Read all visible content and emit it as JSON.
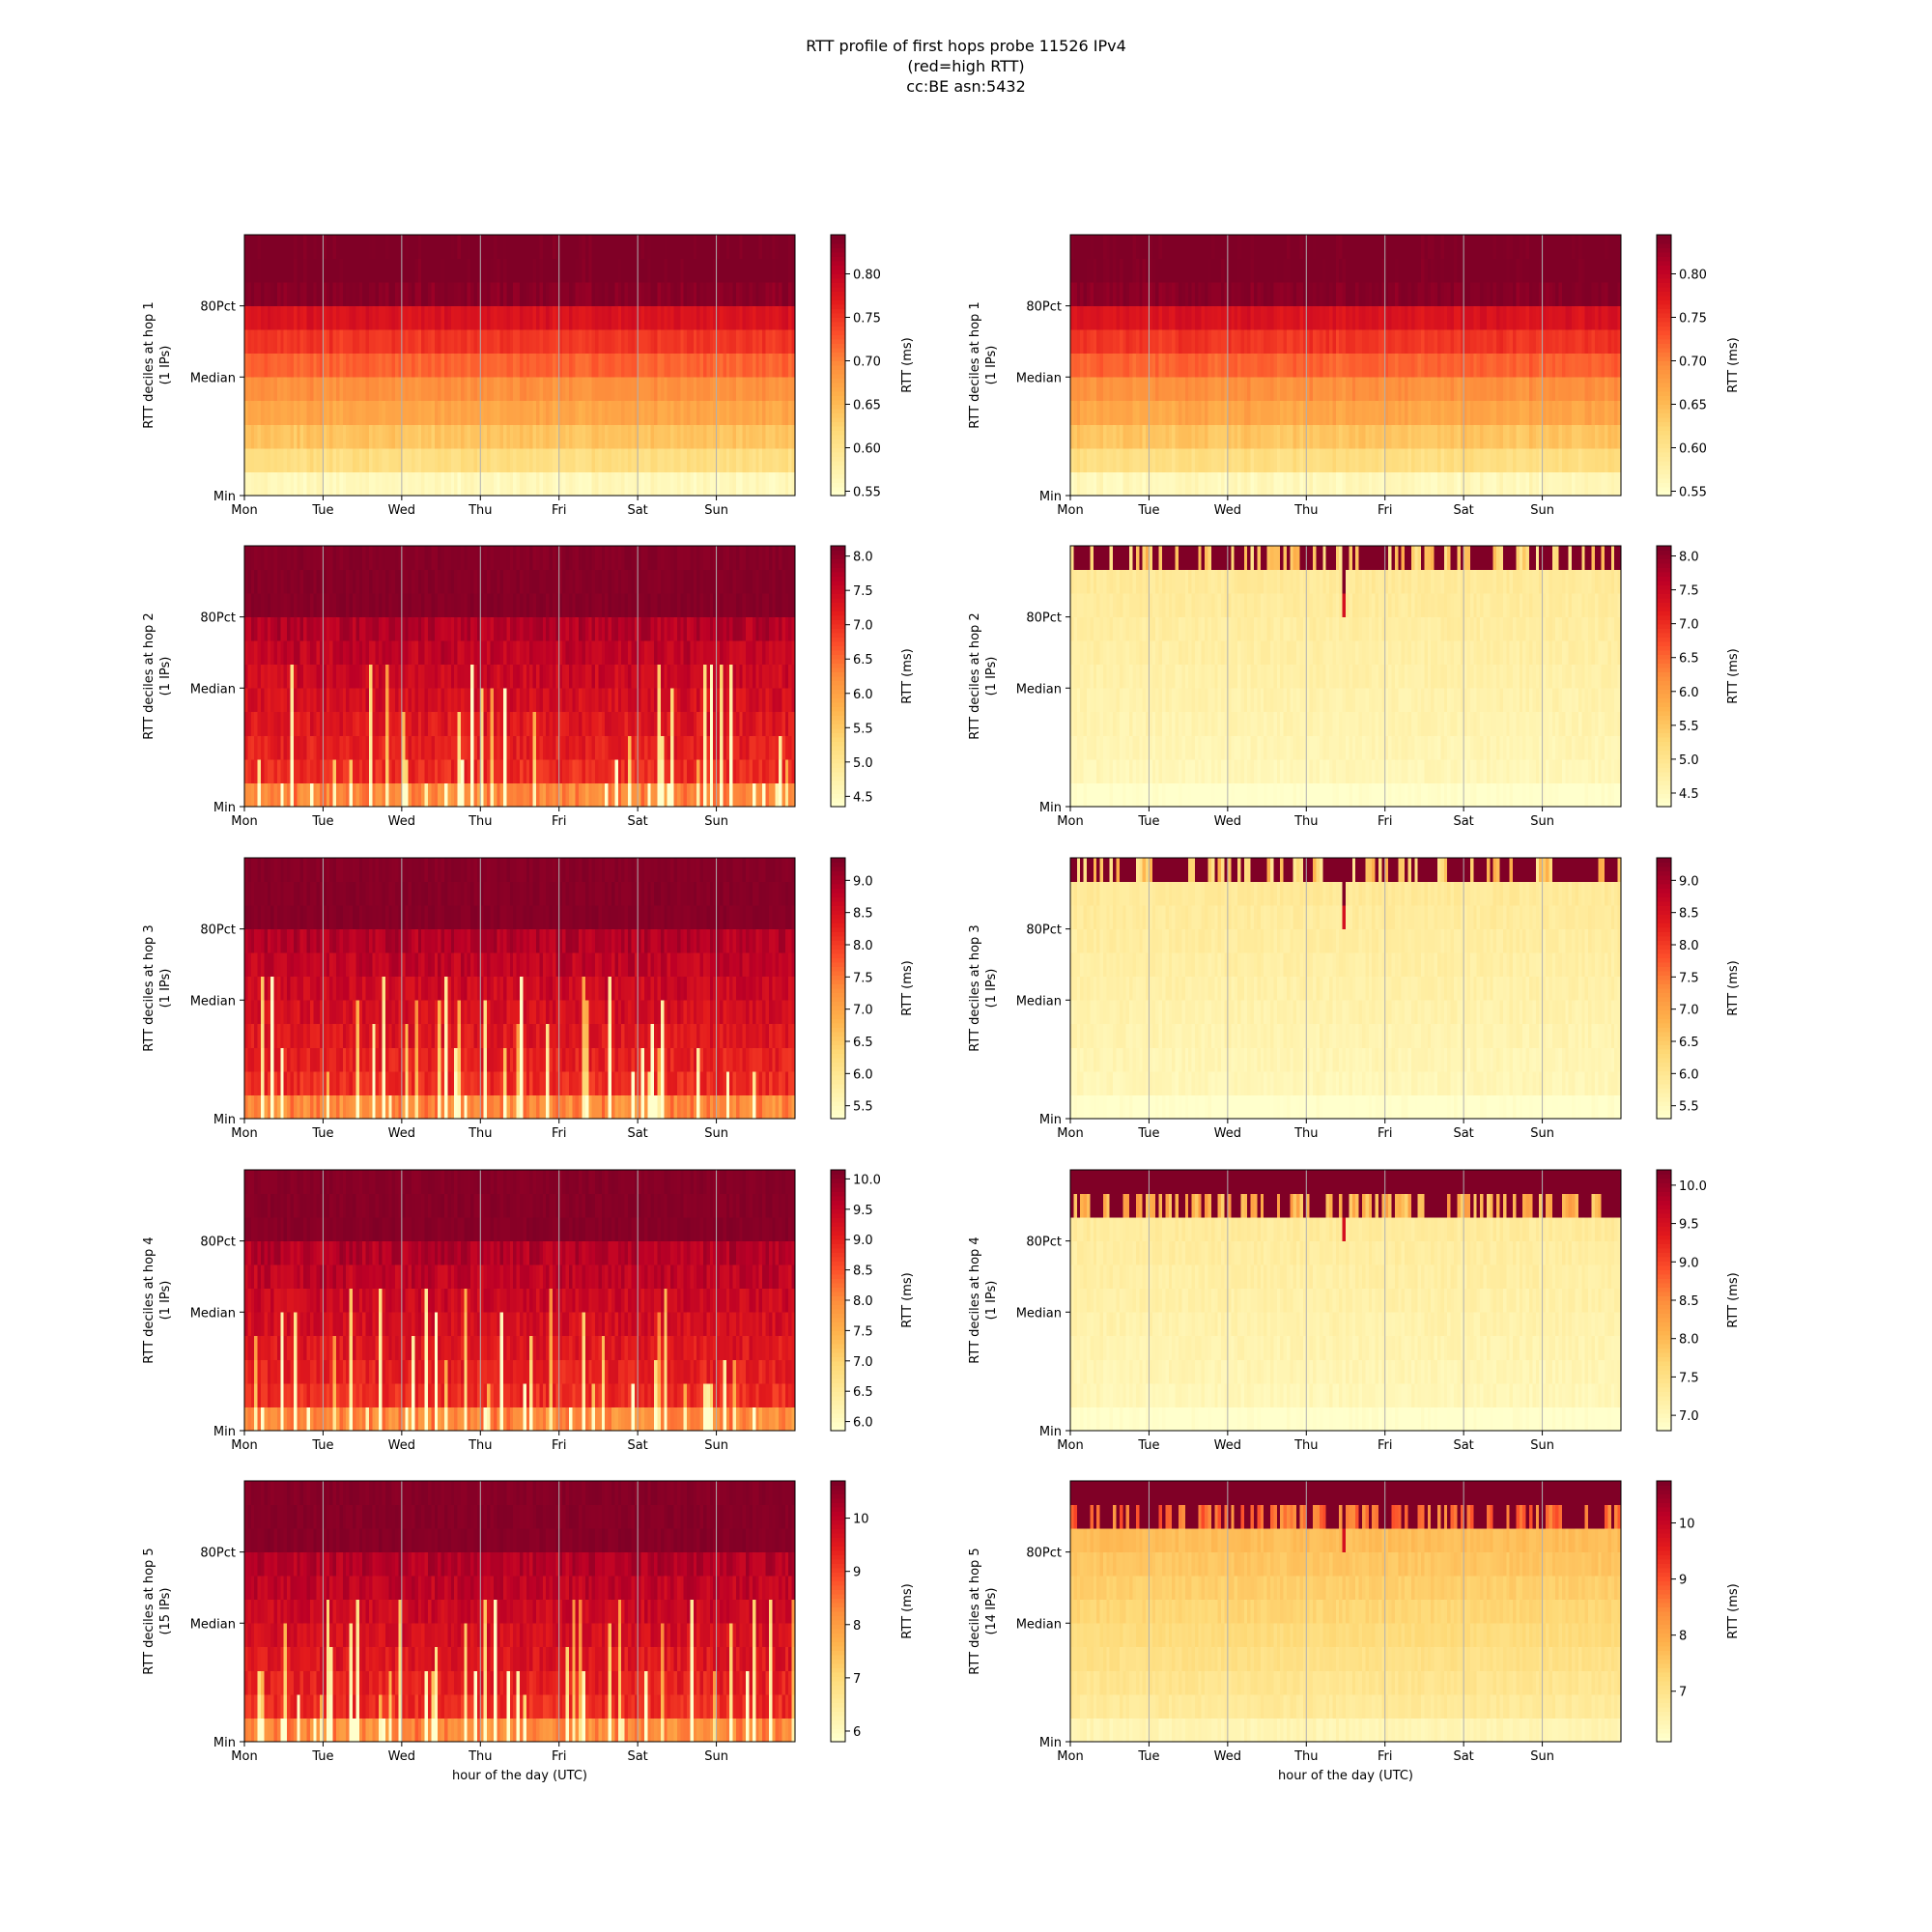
{
  "figure": {
    "title_lines": [
      "RTT profile of first hops probe 11526 IPv4",
      "(red=high RTT)",
      "cc:BE asn:5432"
    ],
    "xlabel": "hour of the day (UTC)",
    "colormap": {
      "name": "YlOrRd",
      "stops": [
        "#ffffcc",
        "#ffeda0",
        "#fed976",
        "#feb24c",
        "#fd8d3c",
        "#fc4e2a",
        "#e31a1c",
        "#bd0026",
        "#800026"
      ]
    },
    "grid_color": "#b0b0b0"
  },
  "chart_data": [
    {
      "type": "heatmap",
      "position": "row-1-left",
      "ylabel": [
        "RTT deciles at hop 1",
        "(1 IPs)"
      ],
      "xtick_labels": [
        "Mon",
        "Tue",
        "Wed",
        "Thu",
        "Fri",
        "Sat",
        "Sun"
      ],
      "ytick_labels": [
        "Min",
        "Median",
        "80Pct"
      ],
      "colorbar": {
        "label": "RTT (ms)",
        "range": [
          0.545,
          0.845
        ],
        "ticks": [
          0.55,
          0.6,
          0.65,
          0.7,
          0.75,
          0.8
        ],
        "tick_labels": [
          "0.55",
          "0.60",
          "0.65",
          "0.70",
          "0.75",
          "0.80"
        ]
      },
      "pattern": "gradient",
      "decile_levels": [
        0.56,
        0.61,
        0.64,
        0.67,
        0.69,
        0.72,
        0.75,
        0.78,
        0.84,
        0.85,
        0.85
      ]
    },
    {
      "type": "heatmap",
      "position": "row-1-right",
      "ylabel": [
        "RTT deciles at hop 1",
        "(1 IPs)"
      ],
      "xtick_labels": [
        "Mon",
        "Tue",
        "Wed",
        "Thu",
        "Fri",
        "Sat",
        "Sun"
      ],
      "ytick_labels": [
        "Min",
        "Median",
        "80Pct"
      ],
      "colorbar": {
        "label": "RTT (ms)",
        "range": [
          0.545,
          0.845
        ],
        "ticks": [
          0.55,
          0.6,
          0.65,
          0.7,
          0.75,
          0.8
        ],
        "tick_labels": [
          "0.55",
          "0.60",
          "0.65",
          "0.70",
          "0.75",
          "0.80"
        ]
      },
      "pattern": "gradient",
      "decile_levels": [
        0.56,
        0.61,
        0.64,
        0.67,
        0.69,
        0.72,
        0.75,
        0.78,
        0.84,
        0.85,
        0.85
      ]
    },
    {
      "type": "heatmap",
      "position": "row-2-left",
      "ylabel": [
        "RTT deciles at hop 2",
        "(1 IPs)"
      ],
      "xtick_labels": [
        "Mon",
        "Tue",
        "Wed",
        "Thu",
        "Fri",
        "Sat",
        "Sun"
      ],
      "ytick_labels": [
        "Min",
        "Median",
        "80Pct"
      ],
      "colorbar": {
        "label": "RTT (ms)",
        "range": [
          4.35,
          8.15
        ],
        "ticks": [
          4.5,
          5.0,
          5.5,
          6.0,
          6.5,
          7.0,
          7.5,
          8.0
        ],
        "tick_labels": [
          "4.5",
          "5.0",
          "5.5",
          "6.0",
          "6.5",
          "7.0",
          "7.5",
          "8.0"
        ]
      },
      "pattern": "noisy-red",
      "seed": 11
    },
    {
      "type": "heatmap",
      "position": "row-2-right",
      "ylabel": [
        "RTT deciles at hop 2",
        "(1 IPs)"
      ],
      "xtick_labels": [
        "Mon",
        "Tue",
        "Wed",
        "Thu",
        "Fri",
        "Sat",
        "Sun"
      ],
      "ytick_labels": [
        "Min",
        "Median",
        "80Pct"
      ],
      "colorbar": {
        "label": "RTT (ms)",
        "range": [
          4.3,
          8.15
        ],
        "ticks": [
          4.5,
          5.0,
          5.5,
          6.0,
          6.5,
          7.0,
          7.5,
          8.0
        ],
        "tick_labels": [
          "4.5",
          "5.0",
          "5.5",
          "6.0",
          "6.5",
          "7.0",
          "7.5",
          "8.0"
        ]
      },
      "pattern": "pale-top-dark",
      "dark_rows": 1,
      "spike_col": 83,
      "seed": 21
    },
    {
      "type": "heatmap",
      "position": "row-3-left",
      "ylabel": [
        "RTT deciles at hop 3",
        "(1 IPs)"
      ],
      "xtick_labels": [
        "Mon",
        "Tue",
        "Wed",
        "Thu",
        "Fri",
        "Sat",
        "Sun"
      ],
      "ytick_labels": [
        "Min",
        "Median",
        "80Pct"
      ],
      "colorbar": {
        "label": "RTT (ms)",
        "range": [
          5.3,
          9.35
        ],
        "ticks": [
          5.5,
          6.0,
          6.5,
          7.0,
          7.5,
          8.0,
          8.5,
          9.0
        ],
        "tick_labels": [
          "5.5",
          "6.0",
          "6.5",
          "7.0",
          "7.5",
          "8.0",
          "8.5",
          "9.0"
        ]
      },
      "pattern": "noisy-red",
      "seed": 12
    },
    {
      "type": "heatmap",
      "position": "row-3-right",
      "ylabel": [
        "RTT deciles at hop 3",
        "(1 IPs)"
      ],
      "xtick_labels": [
        "Mon",
        "Tue",
        "Wed",
        "Thu",
        "Fri",
        "Sat",
        "Sun"
      ],
      "ytick_labels": [
        "Min",
        "Median",
        "80Pct"
      ],
      "colorbar": {
        "label": "RTT (ms)",
        "range": [
          5.3,
          9.35
        ],
        "ticks": [
          5.5,
          6.0,
          6.5,
          7.0,
          7.5,
          8.0,
          8.5,
          9.0
        ],
        "tick_labels": [
          "5.5",
          "6.0",
          "6.5",
          "7.0",
          "7.5",
          "8.0",
          "8.5",
          "9.0"
        ]
      },
      "pattern": "pale-top-dark",
      "dark_rows": 1,
      "spike_col": 83,
      "seed": 31
    },
    {
      "type": "heatmap",
      "position": "row-4-left",
      "ylabel": [
        "RTT deciles at hop 4",
        "(1 IPs)"
      ],
      "xtick_labels": [
        "Mon",
        "Tue",
        "Wed",
        "Thu",
        "Fri",
        "Sat",
        "Sun"
      ],
      "ytick_labels": [
        "Min",
        "Median",
        "80Pct"
      ],
      "colorbar": {
        "label": "RTT (ms)",
        "range": [
          5.85,
          10.15
        ],
        "ticks": [
          6.0,
          6.5,
          7.0,
          7.5,
          8.0,
          8.5,
          9.0,
          9.5,
          10.0
        ],
        "tick_labels": [
          "6.0",
          "6.5",
          "7.0",
          "7.5",
          "8.0",
          "8.5",
          "9.0",
          "9.5",
          "10.0"
        ]
      },
      "pattern": "noisy-red",
      "seed": 13
    },
    {
      "type": "heatmap",
      "position": "row-4-right",
      "ylabel": [
        "RTT deciles at hop 4",
        "(1 IPs)"
      ],
      "xtick_labels": [
        "Mon",
        "Tue",
        "Wed",
        "Thu",
        "Fri",
        "Sat",
        "Sun"
      ],
      "ytick_labels": [
        "Min",
        "Median",
        "80Pct"
      ],
      "colorbar": {
        "label": "RTT (ms)",
        "range": [
          6.8,
          10.2
        ],
        "ticks": [
          7.0,
          7.5,
          8.0,
          8.5,
          9.0,
          9.5,
          10.0
        ],
        "tick_labels": [
          "7.0",
          "7.5",
          "8.0",
          "8.5",
          "9.0",
          "9.5",
          "10.0"
        ]
      },
      "pattern": "pale-top-dark",
      "dark_rows": 2,
      "spike_col": 83,
      "seed": 41
    },
    {
      "type": "heatmap",
      "position": "row-5-left",
      "ylabel": [
        "RTT deciles at hop 5",
        "(15 IPs)"
      ],
      "xtick_labels": [
        "Mon",
        "Tue",
        "Wed",
        "Thu",
        "Fri",
        "Sat",
        "Sun"
      ],
      "ytick_labels": [
        "Min",
        "Median",
        "80Pct"
      ],
      "colorbar": {
        "label": "RTT (ms)",
        "range": [
          5.8,
          10.7
        ],
        "ticks": [
          6,
          7,
          8,
          9,
          10
        ],
        "tick_labels": [
          "6",
          "7",
          "8",
          "9",
          "10"
        ]
      },
      "pattern": "noisy-red",
      "seed": 14
    },
    {
      "type": "heatmap",
      "position": "row-5-right",
      "ylabel": [
        "RTT deciles at hop 5",
        "(14 IPs)"
      ],
      "xtick_labels": [
        "Mon",
        "Tue",
        "Wed",
        "Thu",
        "Fri",
        "Sat",
        "Sun"
      ],
      "ytick_labels": [
        "Min",
        "Median",
        "80Pct"
      ],
      "colorbar": {
        "label": "RTT (ms)",
        "range": [
          6.1,
          10.75
        ],
        "ticks": [
          7,
          8,
          9,
          10
        ],
        "tick_labels": [
          "7",
          "8",
          "9",
          "10"
        ]
      },
      "pattern": "pale-top-dark",
      "dark_rows": 2,
      "spike_col": 83,
      "seed": 51,
      "base_level": 0.3
    }
  ]
}
